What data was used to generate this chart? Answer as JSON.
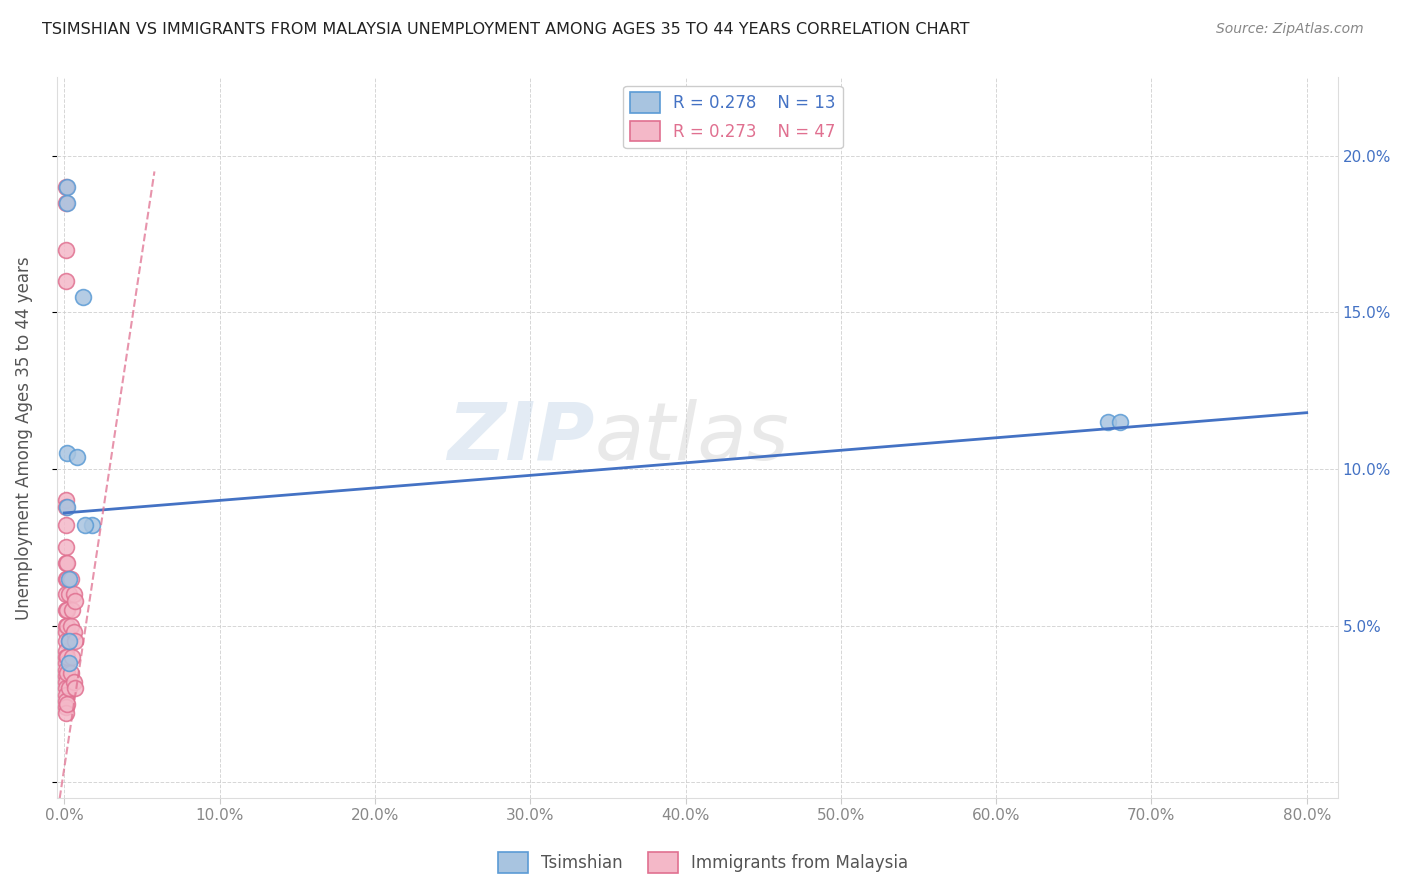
{
  "title": "TSIMSHIAN VS IMMIGRANTS FROM MALAYSIA UNEMPLOYMENT AMONG AGES 35 TO 44 YEARS CORRELATION CHART",
  "source": "Source: ZipAtlas.com",
  "ylabel": "Unemployment Among Ages 35 to 44 years",
  "xlim": [
    -0.005,
    0.82
  ],
  "ylim": [
    -0.005,
    0.225
  ],
  "xticks": [
    0.0,
    0.1,
    0.2,
    0.3,
    0.4,
    0.5,
    0.6,
    0.7,
    0.8
  ],
  "yticks": [
    0.0,
    0.05,
    0.1,
    0.15,
    0.2
  ],
  "xtick_labels": [
    "0.0%",
    "10.0%",
    "20.0%",
    "30.0%",
    "40.0%",
    "50.0%",
    "60.0%",
    "70.0%",
    "80.0%"
  ],
  "ytick_labels_right": [
    "",
    "5.0%",
    "10.0%",
    "15.0%",
    "20.0%"
  ],
  "tsimshian_color": "#a8c4e0",
  "tsimshian_edge_color": "#5b9bd5",
  "malaysia_color": "#f4b8c8",
  "malaysia_edge_color": "#e07090",
  "blue_line_color": "#4472c4",
  "pink_line_color": "#e07090",
  "legend_r1": "R = 0.278",
  "legend_n1": "N = 13",
  "legend_r2": "R = 0.273",
  "legend_n2": "N = 47",
  "legend_label1": "Tsimshian",
  "legend_label2": "Immigrants from Malaysia",
  "watermark_zip": "ZIP",
  "watermark_atlas": "atlas",
  "tsimshian_x": [
    0.002,
    0.002,
    0.012,
    0.002,
    0.018,
    0.002,
    0.008,
    0.013,
    0.672,
    0.68,
    0.003,
    0.003,
    0.003
  ],
  "tsimshian_y": [
    0.19,
    0.185,
    0.155,
    0.105,
    0.082,
    0.088,
    0.104,
    0.082,
    0.115,
    0.115,
    0.065,
    0.045,
    0.038
  ],
  "malaysia_x": [
    0.001,
    0.001,
    0.001,
    0.001,
    0.001,
    0.001,
    0.001,
    0.001,
    0.001,
    0.001,
    0.001,
    0.001,
    0.001,
    0.001,
    0.001,
    0.001,
    0.001,
    0.001,
    0.001,
    0.001,
    0.001,
    0.001,
    0.001,
    0.001,
    0.001,
    0.001,
    0.002,
    0.002,
    0.002,
    0.002,
    0.002,
    0.002,
    0.002,
    0.003,
    0.003,
    0.003,
    0.004,
    0.004,
    0.004,
    0.005,
    0.005,
    0.006,
    0.006,
    0.006,
    0.007,
    0.007,
    0.007
  ],
  "malaysia_y": [
    0.19,
    0.185,
    0.17,
    0.16,
    0.09,
    0.088,
    0.082,
    0.075,
    0.07,
    0.065,
    0.06,
    0.055,
    0.05,
    0.048,
    0.045,
    0.042,
    0.04,
    0.038,
    0.036,
    0.034,
    0.032,
    0.03,
    0.028,
    0.026,
    0.024,
    0.022,
    0.07,
    0.055,
    0.04,
    0.065,
    0.05,
    0.035,
    0.025,
    0.06,
    0.045,
    0.03,
    0.065,
    0.05,
    0.035,
    0.055,
    0.04,
    0.06,
    0.048,
    0.032,
    0.058,
    0.045,
    0.03
  ],
  "blue_line_x": [
    0.0,
    0.8
  ],
  "blue_line_y": [
    0.086,
    0.118
  ],
  "pink_line_x": [
    -0.003,
    0.058
  ],
  "pink_line_y": [
    -0.005,
    0.195
  ]
}
